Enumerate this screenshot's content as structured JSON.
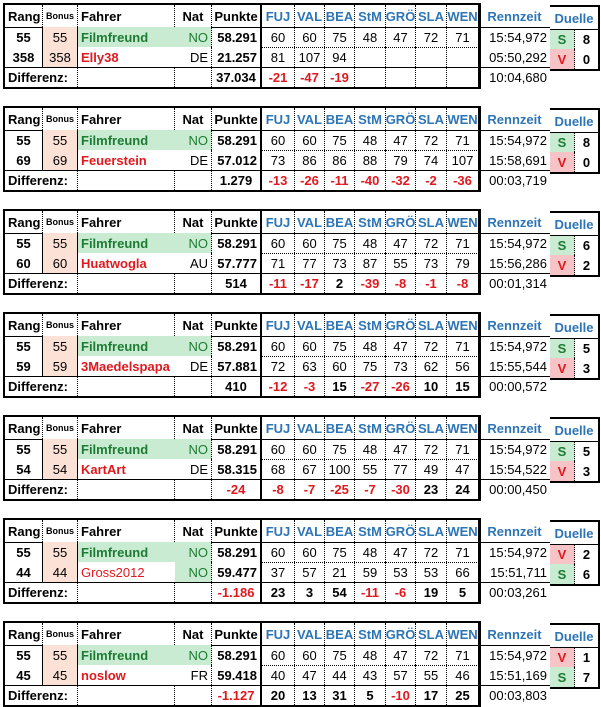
{
  "header": {
    "rang": "Rang",
    "bonus": "Bonus",
    "fahrer": "Fahrer",
    "nat": "Nat",
    "punkte": "Punkte",
    "stages": [
      "FUJ",
      "VAL",
      "BEA",
      "StM",
      "GRÖ",
      "SLA",
      "WEN"
    ],
    "rennzeit": "Rennzeit",
    "duelle": "Duelle"
  },
  "diff_label": "Differenz:",
  "colors": {
    "header_blue": "#2e75b6",
    "negative": "#e0191f",
    "player_green": "#1e7b34",
    "green_fill": "#c9ebd1",
    "bonus_fill": "#fbe1d6",
    "loss_fill": "#f6c3c6"
  },
  "comparisons": [
    {
      "a": {
        "rang": "55",
        "bonus": "55",
        "name": "Filmfreund",
        "nat": "NO",
        "punkte": "58.291",
        "stages": [
          "60",
          "60",
          "75",
          "48",
          "47",
          "72",
          "71"
        ],
        "time": "15:54,972",
        "duel_mark": "S",
        "duel_count": "8"
      },
      "b": {
        "rang": "358",
        "bonus": "358",
        "name": "Elly38",
        "nat": "DE",
        "punkte": "21.257",
        "stages": [
          "81",
          "107",
          "94",
          "",
          "",
          "",
          ""
        ],
        "time": "05:50,292",
        "duel_mark": "V",
        "duel_count": "0"
      },
      "diff": {
        "punkte": "37.034",
        "stages": [
          "-21",
          "-47",
          "-19",
          "",
          "",
          "",
          ""
        ],
        "time": "10:04,680"
      }
    },
    {
      "a": {
        "rang": "55",
        "bonus": "55",
        "name": "Filmfreund",
        "nat": "NO",
        "punkte": "58.291",
        "stages": [
          "60",
          "60",
          "75",
          "48",
          "47",
          "72",
          "71"
        ],
        "time": "15:54,972",
        "duel_mark": "S",
        "duel_count": "8"
      },
      "b": {
        "rang": "69",
        "bonus": "69",
        "name": "Feuerstein",
        "nat": "DE",
        "punkte": "57.012",
        "stages": [
          "73",
          "86",
          "86",
          "88",
          "79",
          "74",
          "107"
        ],
        "time": "15:58,691",
        "duel_mark": "V",
        "duel_count": "0"
      },
      "diff": {
        "punkte": "1.279",
        "stages": [
          "-13",
          "-26",
          "-11",
          "-40",
          "-32",
          "-2",
          "-36"
        ],
        "time": "00:03,719"
      }
    },
    {
      "a": {
        "rang": "55",
        "bonus": "55",
        "name": "Filmfreund",
        "nat": "NO",
        "punkte": "58.291",
        "stages": [
          "60",
          "60",
          "75",
          "48",
          "47",
          "72",
          "71"
        ],
        "time": "15:54,972",
        "duel_mark": "S",
        "duel_count": "6"
      },
      "b": {
        "rang": "60",
        "bonus": "60",
        "name": "Huatwogla",
        "nat": "AU",
        "punkte": "57.777",
        "stages": [
          "71",
          "77",
          "73",
          "87",
          "55",
          "73",
          "79"
        ],
        "time": "15:56,286",
        "duel_mark": "V",
        "duel_count": "2"
      },
      "diff": {
        "punkte": "514",
        "stages": [
          "-11",
          "-17",
          "2",
          "-39",
          "-8",
          "-1",
          "-8"
        ],
        "time": "00:01,314"
      }
    },
    {
      "a": {
        "rang": "55",
        "bonus": "55",
        "name": "Filmfreund",
        "nat": "NO",
        "punkte": "58.291",
        "stages": [
          "60",
          "60",
          "75",
          "48",
          "47",
          "72",
          "71"
        ],
        "time": "15:54,972",
        "duel_mark": "S",
        "duel_count": "5"
      },
      "b": {
        "rang": "59",
        "bonus": "59",
        "name": "3Maedelspapa",
        "nat": "DE",
        "punkte": "57.881",
        "stages": [
          "72",
          "63",
          "60",
          "75",
          "73",
          "62",
          "56"
        ],
        "time": "15:55,544",
        "duel_mark": "V",
        "duel_count": "3"
      },
      "diff": {
        "punkte": "410",
        "stages": [
          "-12",
          "-3",
          "15",
          "-27",
          "-26",
          "10",
          "15"
        ],
        "time": "00:00,572"
      }
    },
    {
      "a": {
        "rang": "55",
        "bonus": "55",
        "name": "Filmfreund",
        "nat": "NO",
        "punkte": "58.291",
        "stages": [
          "60",
          "60",
          "75",
          "48",
          "47",
          "72",
          "71"
        ],
        "time": "15:54,972",
        "duel_mark": "S",
        "duel_count": "5"
      },
      "b": {
        "rang": "54",
        "bonus": "54",
        "name": "KartArt",
        "nat": "DE",
        "punkte": "58.315",
        "stages": [
          "68",
          "67",
          "100",
          "55",
          "77",
          "49",
          "47"
        ],
        "time": "15:54,522",
        "duel_mark": "V",
        "duel_count": "3"
      },
      "diff": {
        "punkte": "-24",
        "stages": [
          "-8",
          "-7",
          "-25",
          "-7",
          "-30",
          "23",
          "24"
        ],
        "time": "00:00,450"
      }
    },
    {
      "a": {
        "rang": "55",
        "bonus": "55",
        "name": "Filmfreund",
        "nat": "NO",
        "punkte": "58.291",
        "stages": [
          "60",
          "60",
          "75",
          "48",
          "47",
          "72",
          "71"
        ],
        "time": "15:54,972",
        "duel_mark": "V",
        "duel_count": "2"
      },
      "b": {
        "rang": "44",
        "bonus": "44",
        "name": "Gross2012",
        "nat": "NO",
        "punkte": "59.477",
        "stages": [
          "37",
          "57",
          "21",
          "59",
          "53",
          "53",
          "66"
        ],
        "time": "15:51,711",
        "duel_mark": "S",
        "duel_count": "6"
      },
      "diff": {
        "punkte": "-1.186",
        "stages": [
          "23",
          "3",
          "54",
          "-11",
          "-6",
          "19",
          "5"
        ],
        "time": "00:03,261"
      }
    },
    {
      "a": {
        "rang": "55",
        "bonus": "55",
        "name": "Filmfreund",
        "nat": "NO",
        "punkte": "58.291",
        "stages": [
          "60",
          "60",
          "75",
          "48",
          "47",
          "72",
          "71"
        ],
        "time": "15:54,972",
        "duel_mark": "V",
        "duel_count": "1"
      },
      "b": {
        "rang": "45",
        "bonus": "45",
        "name": "noslow",
        "nat": "FR",
        "punkte": "59.418",
        "stages": [
          "40",
          "47",
          "44",
          "43",
          "57",
          "55",
          "46"
        ],
        "time": "15:51,169",
        "duel_mark": "S",
        "duel_count": "7"
      },
      "diff": {
        "punkte": "-1.127",
        "stages": [
          "20",
          "13",
          "31",
          "5",
          "-10",
          "17",
          "25"
        ],
        "time": "00:03,803"
      }
    }
  ]
}
